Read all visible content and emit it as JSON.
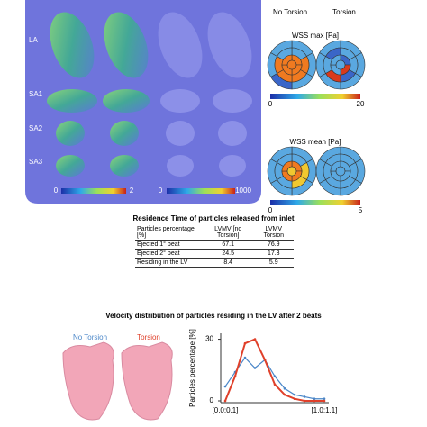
{
  "panel": {
    "row_labels": [
      "LA",
      "SA1",
      "SA2",
      "SA3"
    ],
    "colorbar_left": [
      0,
      2
    ],
    "colorbar_right": [
      0,
      1000
    ]
  },
  "bullseye": {
    "columns": [
      "No Torsion",
      "Torsion"
    ],
    "wss_max": {
      "title": "WSS max [Pa]",
      "range": [
        0,
        20
      ]
    },
    "wss_mean": {
      "title": "WSS mean [Pa]",
      "range": [
        0,
        5
      ]
    }
  },
  "table": {
    "title": "Residence Time of particles released from inlet",
    "header": [
      "Particles percentage [%]",
      "LVMV [no Torsion]",
      "LVMV Torsion"
    ],
    "rows": [
      [
        "Ejected 1° beat",
        67.1,
        76.9
      ],
      [
        "Ejected 2° beat",
        24.5,
        17.3
      ],
      [
        "Residing in the LV",
        8.4,
        5.9
      ]
    ]
  },
  "chart_data": {
    "type": "line",
    "title": "Velocity distribution of particles residing in the LV after 2 beats",
    "ylabel": "Particles percentage [%]",
    "categories": [
      "[0.0;0.1]",
      null,
      null,
      null,
      null,
      null,
      null,
      null,
      null,
      null,
      "[1.0;1.1]"
    ],
    "series": [
      {
        "name": "No Torsion",
        "color": "#4a86c8",
        "values": [
          7,
          14,
          21,
          16,
          20,
          12,
          6,
          3,
          2,
          1,
          1
        ]
      },
      {
        "name": "Torsion",
        "color": "#e0402a",
        "values": [
          0,
          12,
          28,
          30,
          20,
          8,
          3,
          1,
          0,
          0,
          0
        ]
      }
    ],
    "ylim": [
      0,
      32
    ],
    "yticks": [
      0,
      30
    ]
  }
}
